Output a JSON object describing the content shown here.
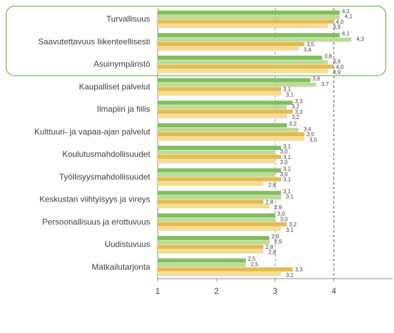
{
  "chart_data": {
    "type": "hbar",
    "categories": [
      "Turvallisuus",
      "Saavutettavuus liikenteellisesti",
      "Asuinympäristö",
      "Kaupalliset palvelut",
      "Ilmapiiri ja fiilis",
      "Kulttuuri- ja vapaa-ajan palvelut",
      "Koulutusmahdollisuudet",
      "Työllisyysmahdollisuudet",
      "Keskustan viihtyisyys ja vireys",
      "Persoonallisuus ja erottuvuus",
      "Uudistuvuus",
      "Matkailutarjonta"
    ],
    "series": [
      {
        "color": "#82bd5e",
        "values": [
          4.1,
          4.1,
          3.8,
          3.6,
          3.3,
          3.2,
          3.1,
          3.1,
          3.1,
          3.0,
          2.9,
          2.5
        ],
        "value_labels": [
          "4,1",
          "4,1",
          "3,8",
          "3,6",
          "3,3",
          "3,2",
          "3,1",
          "3,1",
          "3,1",
          "3,0",
          "2,9",
          "2,5"
        ]
      },
      {
        "color": "#bcdc96",
        "values": [
          4.1,
          4.3,
          3.9,
          3.7,
          3.2,
          3.4,
          3.0,
          3.0,
          3.1,
          3.0,
          2.9,
          2.5
        ],
        "value_labels": [
          "4,1",
          "4,3",
          "3,9",
          "3,7",
          "3,2",
          "3,4",
          "3,0",
          "3,0",
          "3,1",
          "3,0",
          "2,9",
          "2,5"
        ]
      },
      {
        "color": "#e6ba4c",
        "values": [
          4.0,
          3.5,
          4.0,
          3.1,
          3.3,
          3.5,
          3.1,
          3.1,
          2.8,
          3.2,
          2.8,
          3.3
        ],
        "value_labels": [
          "4,0",
          "3,5",
          "4,0",
          "3,1",
          "3,3",
          "3,5",
          "3,1",
          "3,1",
          "2,8",
          "3,2",
          "2,8",
          "3,3"
        ]
      },
      {
        "color": "#f3dc94",
        "values": [
          3.9,
          3.4,
          3.9,
          3.1,
          3.2,
          3.5,
          3.0,
          2.8,
          2.9,
          3.1,
          2.8,
          3.1
        ],
        "value_labels": [
          "3,9",
          "3,4",
          "3,9",
          "3,1",
          "3,2",
          "3,5",
          "3,0",
          "2,8",
          "2,9",
          "3,1",
          "2,8",
          "3,1"
        ]
      }
    ],
    "xlim": [
      1,
      5
    ],
    "xticks": [
      1,
      2,
      3,
      4
    ],
    "reference_lines": [
      3,
      4
    ]
  }
}
